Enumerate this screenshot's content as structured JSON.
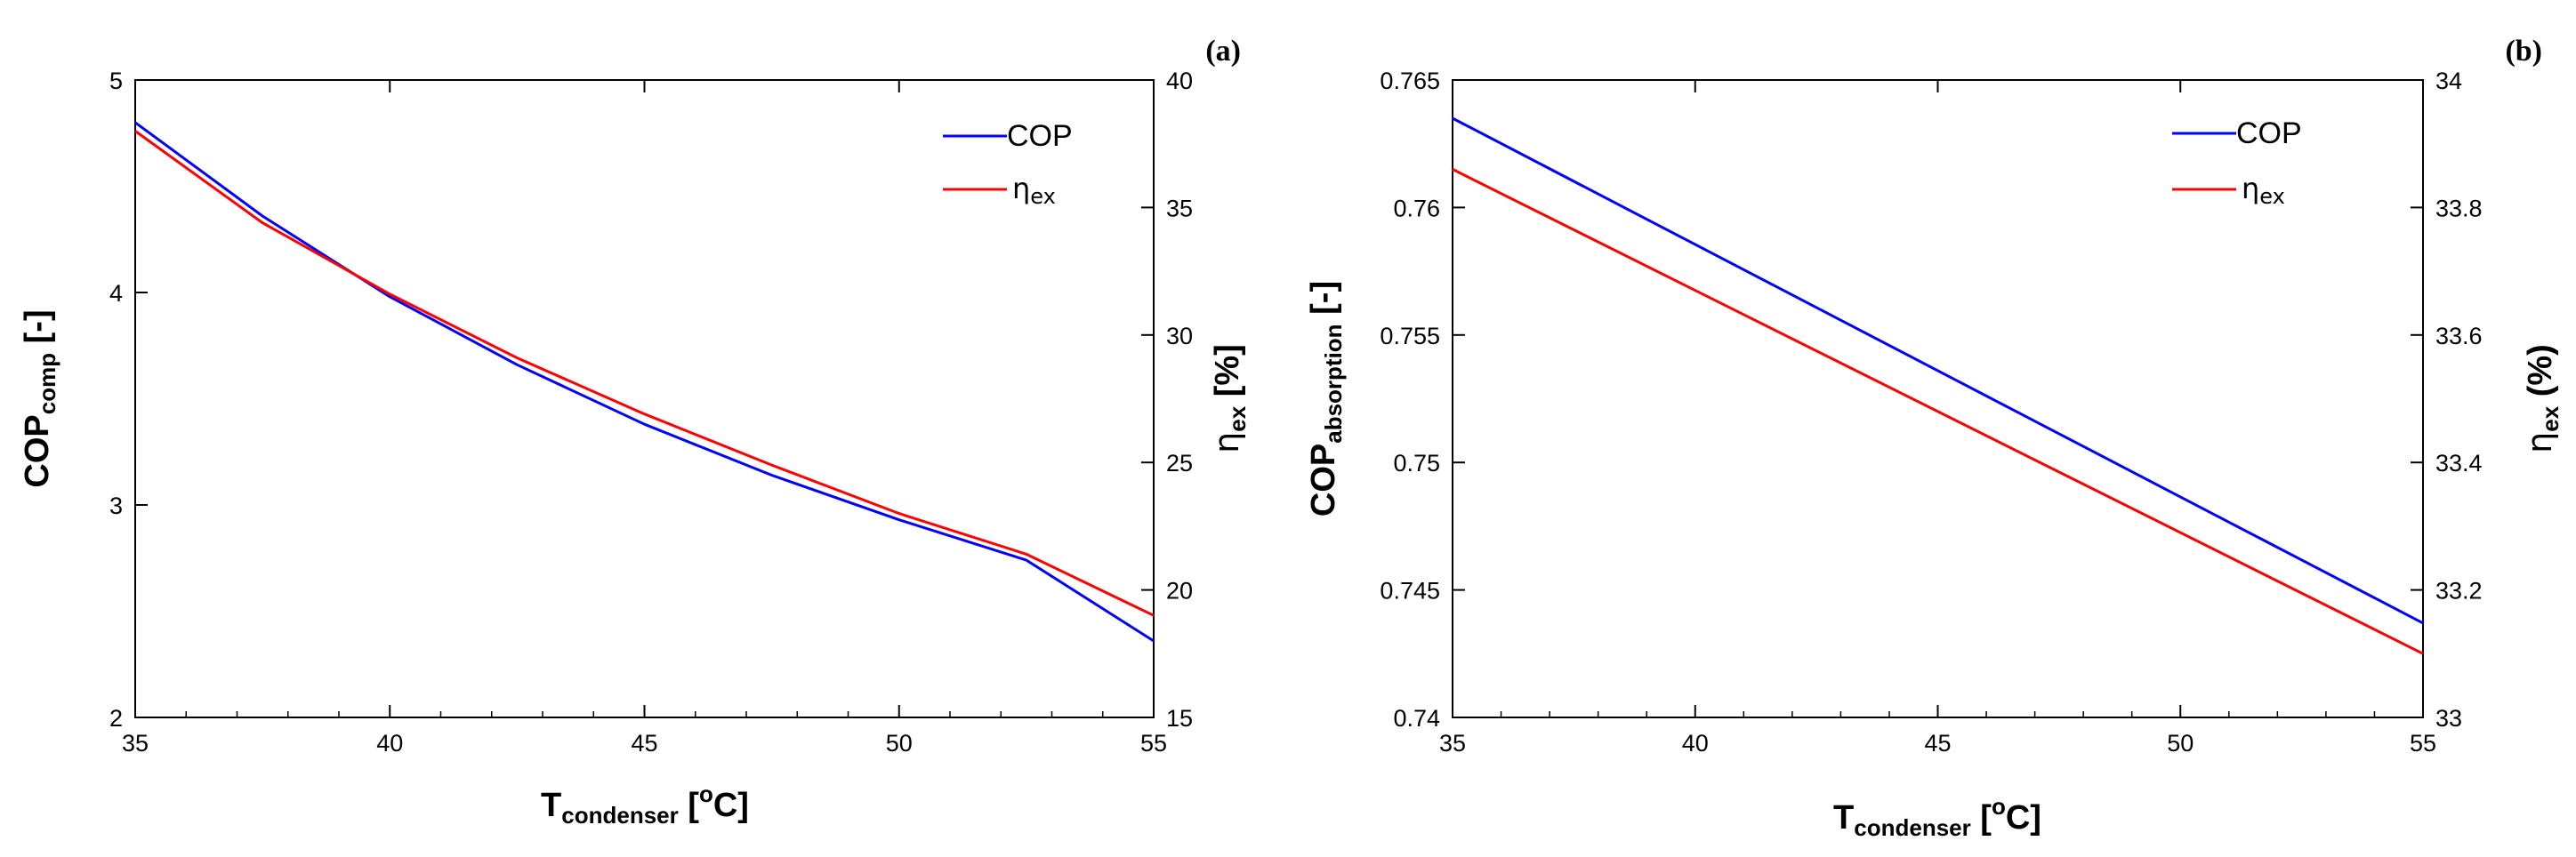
{
  "chart_data": [
    {
      "type": "line",
      "panel_label": "(a)",
      "x_label": {
        "main": "T",
        "sub": "condenser",
        "unit": "[oC]"
      },
      "y_left_label": {
        "main": "COP",
        "sub": "comp",
        "unit": "[-]"
      },
      "y_right_label": {
        "main": "η",
        "sub": "ex",
        "unit": "[%]"
      },
      "xlim": [
        35,
        55
      ],
      "ylim_left": [
        2,
        5
      ],
      "ylim_right": [
        15,
        40
      ],
      "x_ticks": [
        "35",
        "40",
        "45",
        "50",
        "55"
      ],
      "y_left_ticks": [
        "2",
        "3",
        "4",
        "5"
      ],
      "y_right_ticks": [
        "15",
        "20",
        "25",
        "30",
        "35",
        "40"
      ],
      "legend": [
        {
          "label": "COP",
          "color": "#0000ff"
        },
        {
          "label": "η",
          "sub": "ex",
          "color": "#ff0000"
        }
      ],
      "series": [
        {
          "name": "COP",
          "axis": "left",
          "color": "#0000ff",
          "x": [
            35,
            37.5,
            40,
            42.5,
            45,
            47.5,
            50,
            52.5,
            55
          ],
          "y": [
            4.8,
            4.36,
            3.98,
            3.66,
            3.38,
            3.14,
            2.93,
            2.74,
            2.36
          ]
        },
        {
          "name": "η ex",
          "axis": "right",
          "color": "#ff0000",
          "x": [
            35,
            37.5,
            40,
            42.5,
            45,
            47.5,
            50,
            52.5,
            55
          ],
          "y": [
            38.0,
            34.4,
            31.6,
            29.1,
            26.9,
            24.9,
            23.0,
            21.4,
            19.0
          ]
        }
      ]
    },
    {
      "type": "line",
      "panel_label": "(b)",
      "x_label": {
        "main": "T",
        "sub": "condenser",
        "unit": "[oC]"
      },
      "y_left_label": {
        "main": "COP",
        "sub": "absorption",
        "unit": "[-]"
      },
      "y_right_label": {
        "main": "η",
        "sub": "ex",
        "unit": "(%)"
      },
      "xlim": [
        35,
        55
      ],
      "ylim_left": [
        0.74,
        0.765
      ],
      "ylim_right": [
        33,
        34
      ],
      "x_ticks": [
        "35",
        "40",
        "45",
        "50",
        "55"
      ],
      "y_left_ticks": [
        "0.74",
        "0.745",
        "0.75",
        "0.755",
        "0.76",
        "0.765"
      ],
      "y_right_ticks": [
        "33",
        "33.2",
        "33.4",
        "33.6",
        "33.8",
        "34"
      ],
      "legend": [
        {
          "label": "COP",
          "color": "#0000ff"
        },
        {
          "label": "η",
          "sub": "ex",
          "color": "#ff0000"
        }
      ],
      "series": [
        {
          "name": "COP",
          "axis": "left",
          "color": "#0000ff",
          "x": [
            35,
            55
          ],
          "y": [
            0.7635,
            0.7437
          ]
        },
        {
          "name": "η ex",
          "axis": "right",
          "color": "#ff0000",
          "x": [
            35,
            55
          ],
          "y": [
            33.86,
            33.1
          ]
        }
      ]
    }
  ]
}
